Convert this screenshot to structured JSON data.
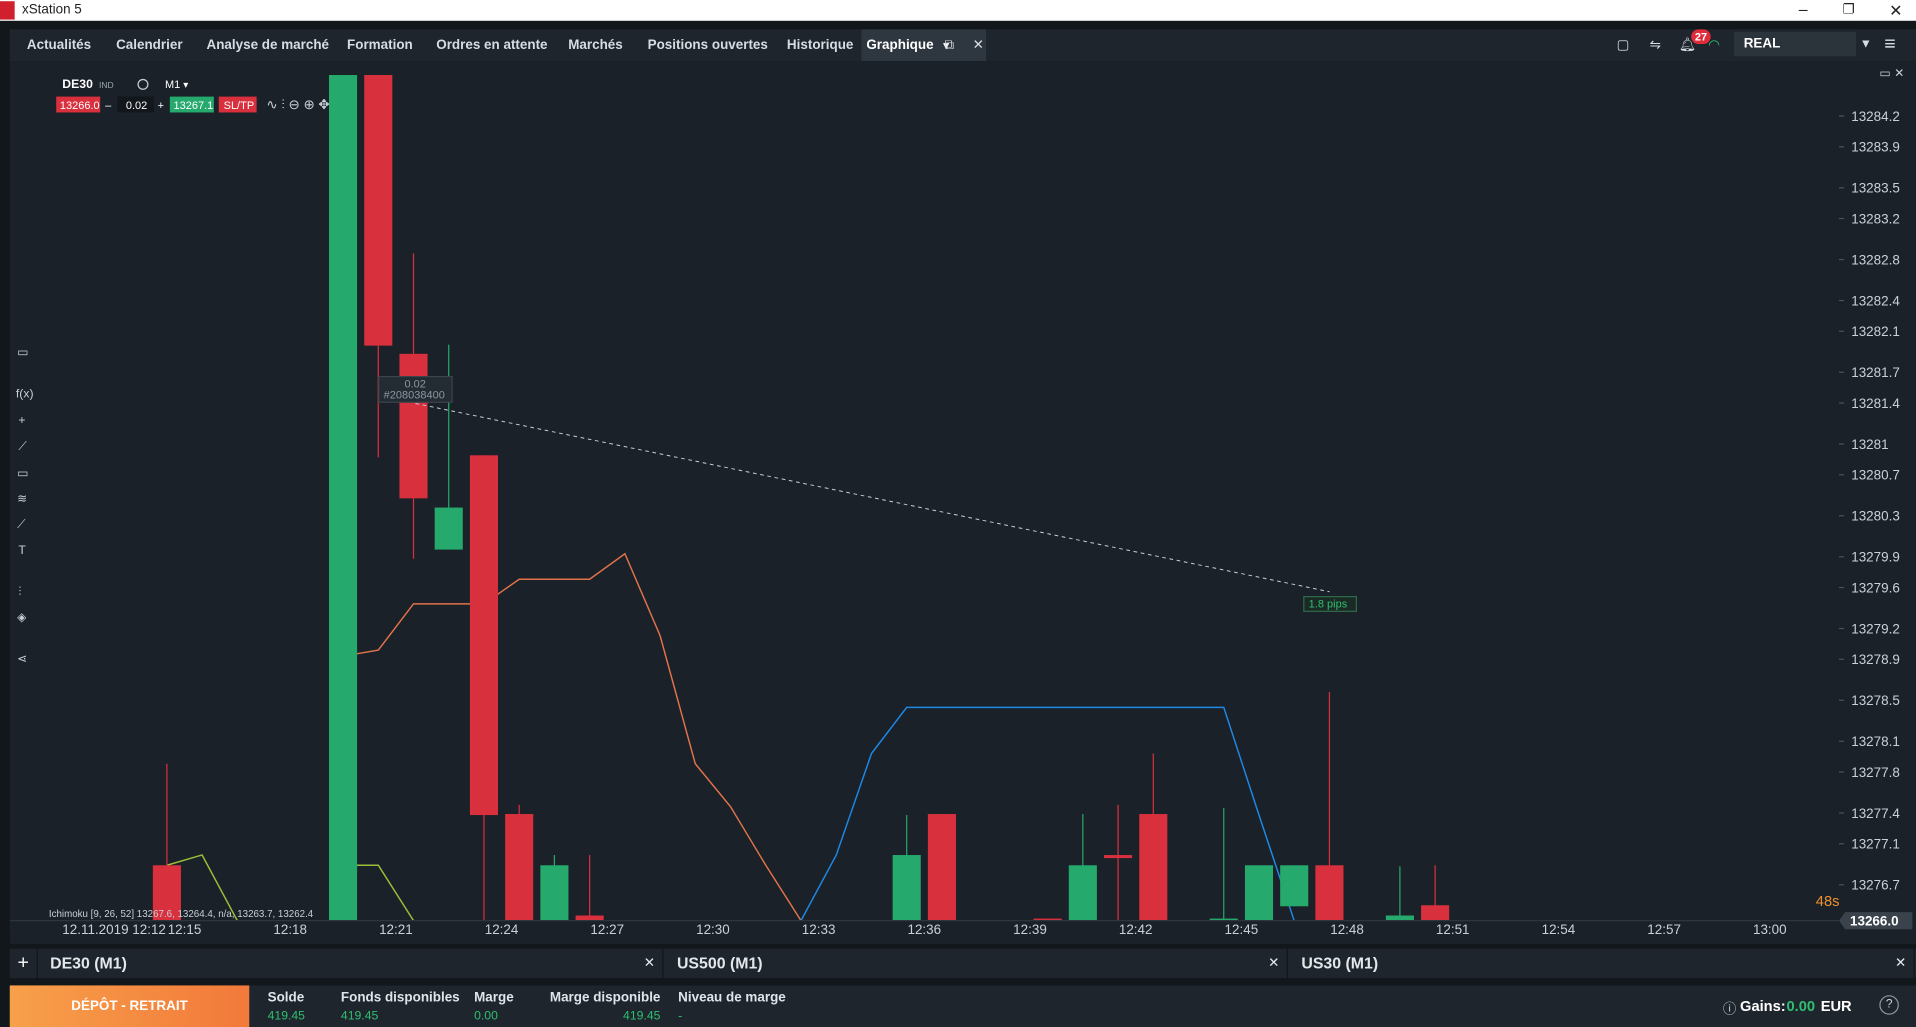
{
  "window": {
    "title": "xStation 5"
  },
  "nav": {
    "tabs": [
      "Actualités",
      "Calendrier",
      "Analyse de marché",
      "Formation",
      "Ordres en attente",
      "Marchés",
      "Positions ouvertes",
      "Historique"
    ],
    "active_tab": "Graphique",
    "notifications": "27",
    "account_type": "REAL"
  },
  "symbol_bar": {
    "symbol": "DE30",
    "kind": "IND",
    "interval": "M1",
    "sell": "13266.0",
    "volume": "0.02",
    "buy": "13267.1",
    "sltp": "SL/TP"
  },
  "chart": {
    "type": "candlestick",
    "categories": [
      "12.11.2019 12:12",
      null,
      null,
      "12:15",
      null,
      null,
      "12:18",
      null,
      null,
      "12:21",
      null,
      null,
      "12:24",
      null,
      null,
      "12:27",
      null,
      null,
      "12:30",
      null,
      null,
      "12:33",
      null,
      null,
      "12:36",
      null,
      null,
      "12:39",
      null,
      null,
      "12:42",
      null,
      null,
      "12:45",
      null,
      null,
      "12:48",
      null,
      null,
      "12:51",
      null,
      null,
      "12:54",
      null,
      null,
      "12:57",
      null,
      null,
      "13:00",
      null
    ],
    "ylim": [
      13276.35,
      13284.64
    ],
    "yticks": [
      13284.2,
      13283.9,
      13283.5,
      13283.2,
      13282.8,
      13282.4,
      13282.1,
      13281.7,
      13281.4,
      13281.0,
      13280.7,
      13280.3,
      13279.9,
      13279.6,
      13279.2,
      13278.9,
      13278.5,
      13278.1,
      13277.8,
      13277.4,
      13277.1,
      13276.7
    ],
    "up_color": "#26a96c",
    "down_color": "#d9303e",
    "candles": {
      "open": [
        null,
        null,
        13276.89,
        null,
        null,
        null,
        null,
        13276.35,
        13284.6,
        13281.88,
        13279.97,
        13280.89,
        13277.39,
        13276.35,
        13276.4,
        null,
        null,
        null,
        null,
        null,
        null,
        null,
        null,
        13276.35,
        13277.39,
        null,
        null,
        13276.37,
        13276.35,
        13276.99,
        13277.39,
        null,
        13276.35,
        13276.35,
        13276.49,
        13276.89,
        null,
        13276.35,
        13276.5,
        null,
        null,
        null,
        null,
        null,
        null,
        null,
        null,
        null,
        null,
        null
      ],
      "high": [
        null,
        null,
        13277.88,
        null,
        null,
        null,
        null,
        13284.6,
        13284.6,
        13282.86,
        13281.97,
        13280.89,
        13277.48,
        13276.99,
        13276.99,
        null,
        null,
        null,
        null,
        null,
        null,
        null,
        null,
        13277.38,
        13277.39,
        null,
        null,
        13276.37,
        13277.39,
        13277.48,
        13277.98,
        null,
        13277.45,
        13276.89,
        13276.89,
        13278.58,
        null,
        13276.88,
        13276.89,
        null,
        null,
        null,
        null,
        null,
        null,
        null,
        null,
        null,
        null,
        null
      ],
      "low": [
        null,
        null,
        13276.35,
        null,
        null,
        null,
        null,
        13276.35,
        13280.87,
        13279.88,
        13279.97,
        13276.35,
        13276.35,
        13276.35,
        13276.35,
        null,
        null,
        null,
        null,
        null,
        null,
        null,
        null,
        13276.35,
        13276.35,
        null,
        null,
        13276.35,
        13276.35,
        13276.35,
        13276.35,
        null,
        13276.35,
        13276.35,
        13276.49,
        13276.35,
        null,
        13276.35,
        13276.35,
        null,
        null,
        null,
        null,
        null,
        null,
        null,
        null,
        null,
        null,
        null
      ],
      "close": [
        null,
        null,
        13276.35,
        null,
        null,
        null,
        null,
        13284.6,
        13281.96,
        13280.47,
        13280.38,
        13277.38,
        13276.35,
        13276.89,
        13276.35,
        null,
        null,
        null,
        null,
        null,
        null,
        null,
        null,
        13276.99,
        13276.35,
        null,
        null,
        13276.35,
        13276.89,
        13276.96,
        13276.35,
        null,
        13276.37,
        13276.89,
        13276.89,
        13276.35,
        null,
        13276.4,
        13276.35,
        null,
        null,
        null,
        null,
        null,
        null,
        null,
        null,
        null,
        null,
        null
      ]
    },
    "lines": [
      {
        "color": "#e0734a",
        "values": [
          null,
          null,
          null,
          null,
          null,
          null,
          null,
          13278.93,
          13278.99,
          13279.44,
          13279.44,
          13279.44,
          13279.68,
          13279.68,
          13279.68,
          13279.93,
          13279.13,
          13277.88,
          13277.46,
          13276.89,
          13276.35,
          null,
          null,
          null,
          null,
          null,
          null,
          null,
          null,
          null,
          null,
          null,
          null,
          null,
          null,
          null,
          null,
          null,
          null,
          null,
          null,
          null,
          null,
          null,
          null,
          null,
          null,
          null,
          null,
          null
        ]
      },
      {
        "color": "#1e88e5",
        "values": [
          null,
          null,
          null,
          null,
          null,
          null,
          null,
          null,
          null,
          null,
          null,
          null,
          null,
          null,
          null,
          null,
          null,
          null,
          null,
          null,
          13276.35,
          13276.99,
          13277.98,
          13278.43,
          13278.43,
          13278.43,
          13278.43,
          13278.43,
          13278.43,
          13278.43,
          13278.43,
          13278.43,
          13278.43,
          13277.38,
          13276.35,
          null,
          null,
          null,
          null,
          null,
          null,
          null,
          null,
          null,
          null,
          null,
          null,
          null,
          null,
          null
        ]
      },
      {
        "color": "#9bbf3a",
        "values": [
          null,
          null,
          13276.89,
          13276.99,
          13276.35,
          null,
          null,
          13276.89,
          13276.89,
          13276.35,
          null,
          null,
          null,
          null,
          null,
          null,
          null,
          null,
          null,
          null,
          null,
          null,
          null,
          null,
          null,
          null,
          null,
          null,
          null,
          null,
          null,
          null,
          null,
          null,
          null,
          null,
          null,
          null,
          null,
          null,
          null,
          null,
          null,
          null,
          null,
          null,
          null,
          null,
          null,
          null
        ]
      }
    ],
    "order_label": {
      "volume": "0.02",
      "id": "#208038400"
    },
    "measure": "1.8 pips",
    "indicator": "Ichimoku [9, 26, 52] 13267.6, 13264.4, n/a, 13263.7, 13262.4",
    "price_label": "13266.0",
    "countdown": "48s"
  },
  "chart_tabs": [
    "DE30 (M1)",
    "US500 (M1)",
    "US30 (M1)"
  ],
  "account": {
    "button": "DÉPÔT - RETRAIT",
    "fields": [
      {
        "label": "Solde",
        "value": "419.45"
      },
      {
        "label": "Fonds disponibles",
        "value": "419.45"
      },
      {
        "label": "Marge",
        "value": "0.00"
      },
      {
        "label": "Marge disponible",
        "value": "419.45"
      },
      {
        "label": "Niveau de marge",
        "value": "-"
      }
    ],
    "gains_label": "Gains:",
    "gains": "0.00",
    "currency": "EUR"
  }
}
